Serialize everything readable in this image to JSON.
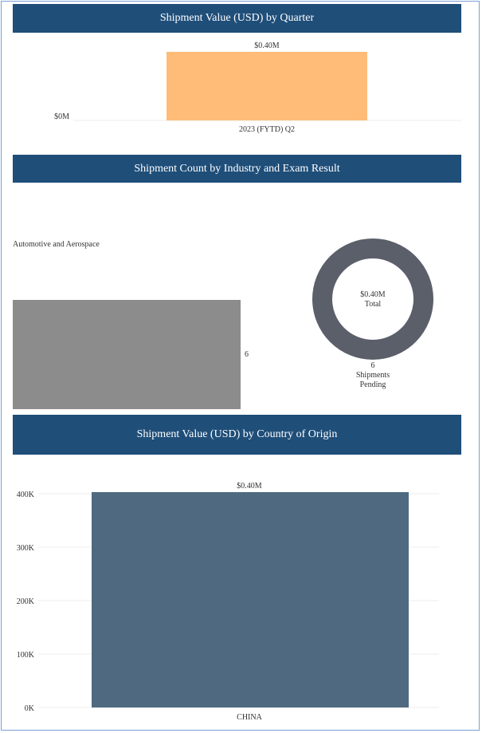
{
  "colors": {
    "header_bg": "#1f4e79",
    "quarter_bar": "#ffbb78",
    "industry_bar": "#8c8c8c",
    "donut": "#5a5f6a",
    "country_bar": "#4f6a80"
  },
  "panels": {
    "quarter": {
      "title": "Shipment Value (USD) by Quarter"
    },
    "industry": {
      "title": "Shipment Count by Industry and Exam Result"
    },
    "country": {
      "title": "Shipment Value (USD) by Country of Origin"
    }
  },
  "chart_data": [
    {
      "type": "bar",
      "title": "Shipment Value (USD) by Quarter",
      "categories": [
        "2023 (FYTD) Q2"
      ],
      "values": [
        400000
      ],
      "data_labels": [
        "$0.40M"
      ],
      "y_ticks": [
        {
          "value": 0,
          "label": "$0M"
        }
      ],
      "ylim": [
        0,
        400000
      ],
      "grid": false
    },
    {
      "type": "bar",
      "orientation": "horizontal",
      "title": "Shipment Count by Industry and Exam Result",
      "categories": [
        "Automotive and Aerospace"
      ],
      "values": [
        6
      ],
      "data_labels": [
        "6"
      ],
      "xlim": [
        0,
        6
      ]
    },
    {
      "type": "pie",
      "style": "donut",
      "center_value": "$0.40M",
      "center_label": "Total",
      "slices": [
        {
          "label": "Shipments Pending",
          "value": 6,
          "label_value": "6",
          "label_line1": "Shipments",
          "label_line2": "Pending"
        }
      ]
    },
    {
      "type": "bar",
      "title": "Shipment Value (USD) by Country of Origin",
      "categories": [
        "CHINA"
      ],
      "values": [
        403000
      ],
      "data_labels": [
        "$0.40M"
      ],
      "y_ticks": [
        {
          "value": 0,
          "label": "0K"
        },
        {
          "value": 100000,
          "label": "100K"
        },
        {
          "value": 200000,
          "label": "200K"
        },
        {
          "value": 300000,
          "label": "300K"
        },
        {
          "value": 400000,
          "label": "400K"
        }
      ],
      "ylim": [
        0,
        410000
      ],
      "grid": true
    }
  ]
}
